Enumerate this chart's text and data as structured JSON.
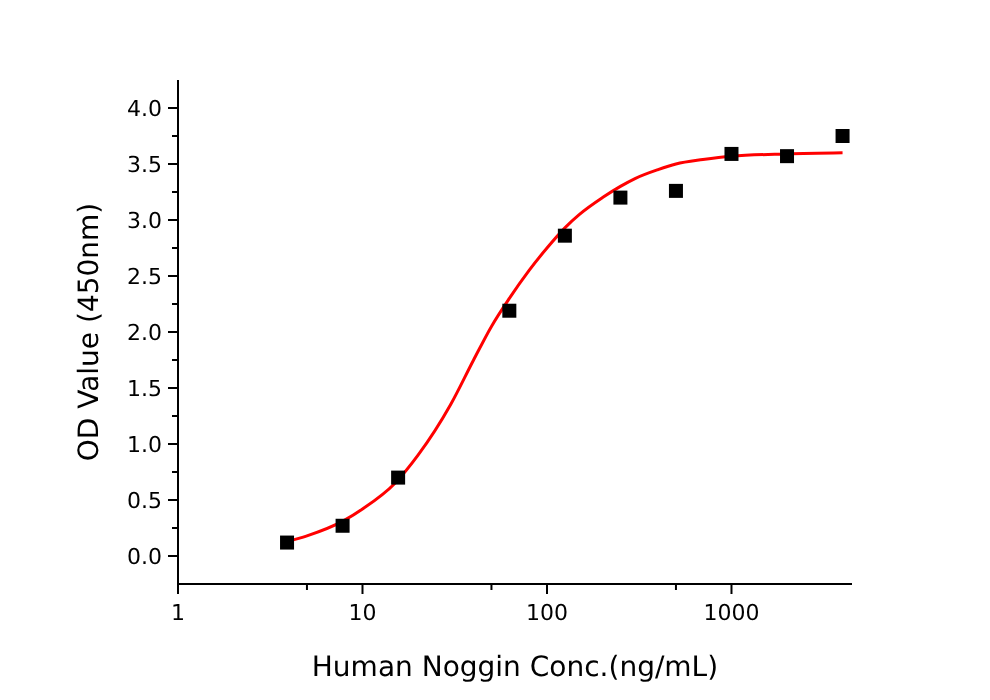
{
  "chart_data": {
    "type": "scatter",
    "xlabel": "Human Noggin Conc.(ng/mL)",
    "ylabel": "OD Value (450nm)",
    "log": "x",
    "xlim": [
      1,
      4500
    ],
    "ylim": [
      -0.25,
      4.25
    ],
    "xticks": [
      1,
      {
        "value": 5,
        "label": null
      },
      10,
      {
        "value": 50,
        "label": null
      },
      100,
      {
        "value": 500,
        "label": null
      },
      1000
    ],
    "yticks": [
      {
        "value": 0,
        "label": "0.0"
      },
      {
        "value": 0.25,
        "label": null
      },
      {
        "value": 0.5,
        "label": "0.5"
      },
      {
        "value": 0.75,
        "label": null
      },
      {
        "value": 1,
        "label": "1.0"
      },
      {
        "value": 1.25,
        "label": null
      },
      {
        "value": 1.5,
        "label": "1.5"
      },
      {
        "value": 1.75,
        "label": null
      },
      {
        "value": 2,
        "label": "2.0"
      },
      {
        "value": 2.25,
        "label": null
      },
      {
        "value": 2.5,
        "label": "2.5"
      },
      {
        "value": 2.75,
        "label": null
      },
      {
        "value": 3,
        "label": "3.0"
      },
      {
        "value": 3.25,
        "label": null
      },
      {
        "value": 3.5,
        "label": "3.5"
      },
      {
        "value": 3.75,
        "label": null
      },
      {
        "value": 4,
        "label": "4.0"
      }
    ],
    "grid": false,
    "series": [
      {
        "type": "line",
        "color": "#ff0000",
        "marker": "none",
        "line_style": "solid",
        "x": [
          3.9,
          5,
          8,
          10,
          15,
          20,
          30,
          40,
          50,
          62.5,
          80,
          100,
          125,
          150,
          200,
          250,
          300,
          400,
          500,
          700,
          1000,
          2000,
          4000
        ],
        "values": [
          0.13,
          0.18,
          0.32,
          0.42,
          0.65,
          0.9,
          1.35,
          1.75,
          2.05,
          2.3,
          2.55,
          2.75,
          2.93,
          3.05,
          3.2,
          3.3,
          3.37,
          3.45,
          3.5,
          3.54,
          3.57,
          3.59,
          3.6
        ]
      },
      {
        "color": "#000000",
        "marker": "square",
        "x": [
          3.9,
          7.8,
          15.6,
          62.5,
          125,
          250,
          500,
          1000,
          2000,
          4000
        ],
        "values": [
          0.12,
          0.27,
          0.7,
          2.19,
          2.86,
          3.2,
          3.26,
          3.59,
          3.57,
          3.75
        ]
      }
    ]
  }
}
